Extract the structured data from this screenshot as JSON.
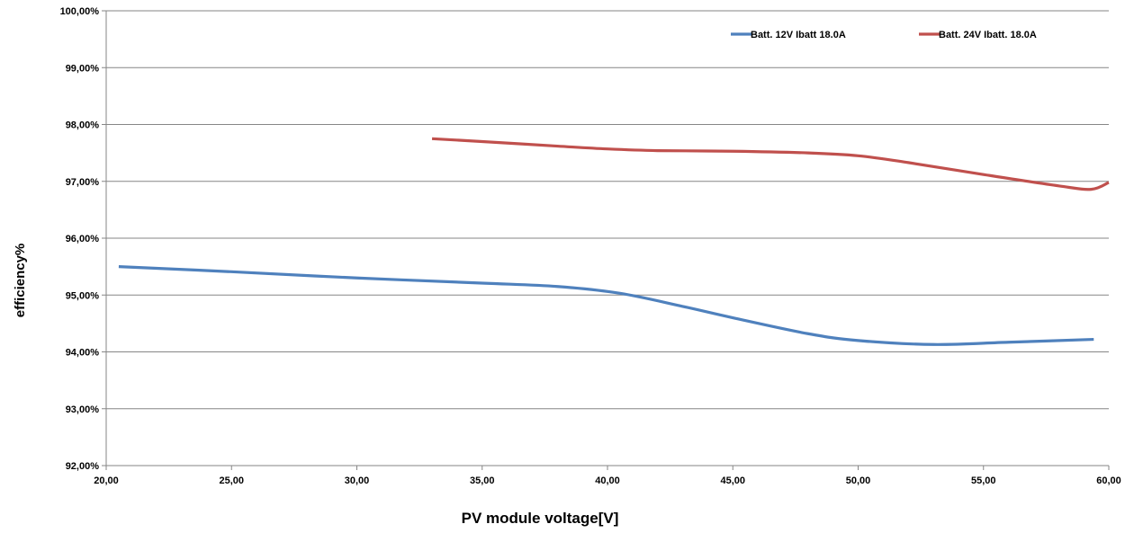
{
  "chart_data": {
    "type": "line",
    "title": "",
    "xlabel": "PV  module voltage[V]",
    "ylabel": "efficiency%",
    "xlim": [
      20,
      60
    ],
    "ylim": [
      0.92,
      1.0
    ],
    "x_ticks": [
      20,
      25,
      30,
      35,
      40,
      45,
      50,
      55,
      60
    ],
    "x_tick_labels": [
      "20,00",
      "25,00",
      "30,00",
      "35,00",
      "40,00",
      "45,00",
      "50,00",
      "55,00",
      "60,00"
    ],
    "y_ticks": [
      0.92,
      0.93,
      0.94,
      0.95,
      0.96,
      0.97,
      0.98,
      0.99,
      1.0
    ],
    "y_tick_labels": [
      "92,00%",
      "93,00%",
      "94,00%",
      "95,00%",
      "96,00%",
      "97,00%",
      "98,00%",
      "99,00%",
      "100,00%"
    ],
    "grid": "horizontal",
    "legend_position": "top-right",
    "series": [
      {
        "name": "Batt. 12V Ibatt 18.0A",
        "color": "#4f81bd",
        "x": [
          20.5,
          25,
          30,
          35,
          38,
          40.5,
          43,
          45,
          48,
          50,
          53,
          56,
          59.4
        ],
        "y": [
          0.955,
          0.9541,
          0.953,
          0.9521,
          0.9515,
          0.9503,
          0.948,
          0.946,
          0.9432,
          0.942,
          0.9413,
          0.9417,
          0.9422
        ]
      },
      {
        "name": "Batt. 24V Ibatt. 18.0A",
        "color": "#c0504d",
        "x": [
          33,
          35,
          38,
          40,
          42,
          45,
          48,
          50,
          52,
          55,
          58,
          59.3,
          60
        ],
        "y": [
          0.9775,
          0.977,
          0.9762,
          0.9757,
          0.9754,
          0.9753,
          0.975,
          0.9745,
          0.9733,
          0.9712,
          0.9692,
          0.9686,
          0.9698
        ]
      }
    ]
  }
}
